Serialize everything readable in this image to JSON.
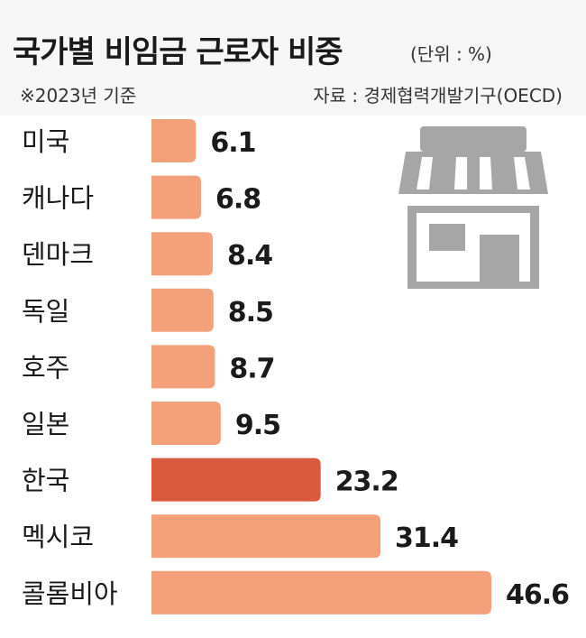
{
  "header": {
    "title": "국가별 비임금 근로자 비중",
    "unit": "(단위 : %)",
    "note": "※2023년 기준",
    "source": "자료 : 경제협력개발기구(OECD)"
  },
  "icon": "store-icon",
  "colors": {
    "bar": "#f4a07b",
    "highlight": "#d95a3c",
    "icon": "#a6a6a6",
    "header_bg": "#f6f6f6"
  },
  "chart_data": {
    "type": "bar",
    "orientation": "horizontal",
    "title": "국가별 비임금 근로자 비중",
    "categories": [
      "미국",
      "캐나다",
      "덴마크",
      "독일",
      "호주",
      "일본",
      "한국",
      "멕시코",
      "콜롬비아"
    ],
    "values": [
      6.1,
      6.8,
      8.4,
      8.5,
      8.7,
      9.5,
      23.2,
      31.4,
      46.6
    ],
    "value_labels": [
      "6.1",
      "6.8",
      "8.4",
      "8.5",
      "8.7",
      "9.5",
      "23.2",
      "31.4",
      "46.6"
    ],
    "highlight_category": "한국",
    "xlim": [
      0,
      50
    ],
    "grid": false,
    "legend": "none"
  }
}
